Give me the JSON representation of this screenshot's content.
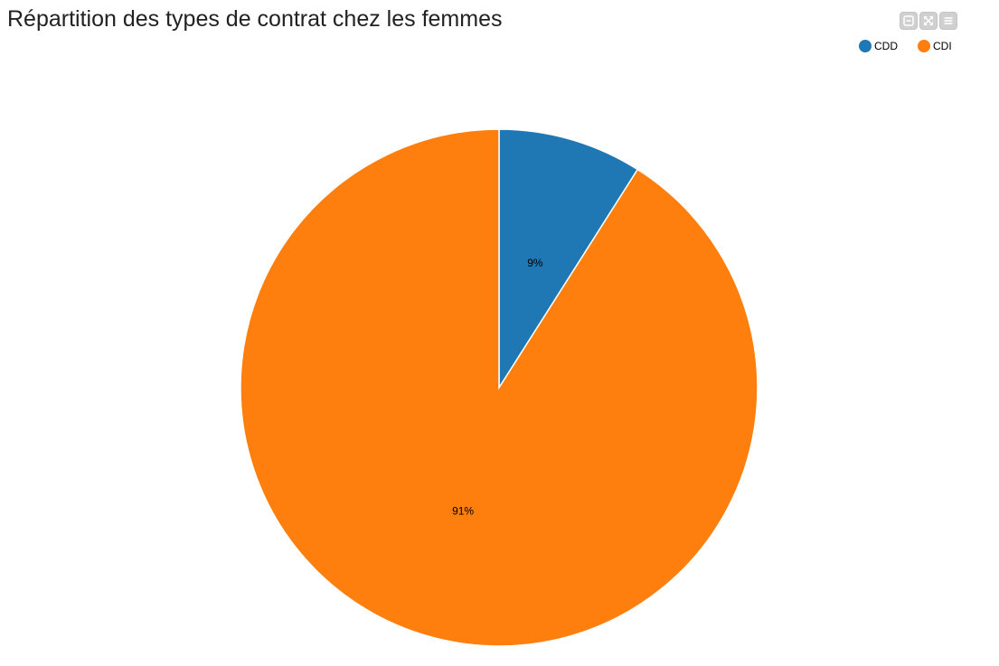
{
  "chart_data": {
    "type": "pie",
    "title": "Répartition des types de contrat chez les femmes",
    "categories": [
      "CDD",
      "CDI"
    ],
    "values": [
      9,
      91
    ],
    "labels": [
      "9%",
      "91%"
    ],
    "colors": [
      "#1f77b4",
      "#ff7f0e"
    ],
    "legend_position": "top-right"
  },
  "legend": {
    "items": [
      {
        "label": "CDD",
        "color": "#1f77b4"
      },
      {
        "label": "CDI",
        "color": "#ff7f0e"
      }
    ]
  },
  "toolbar": {
    "icons": [
      "minimize-icon",
      "fullscreen-icon",
      "menu-icon"
    ]
  }
}
